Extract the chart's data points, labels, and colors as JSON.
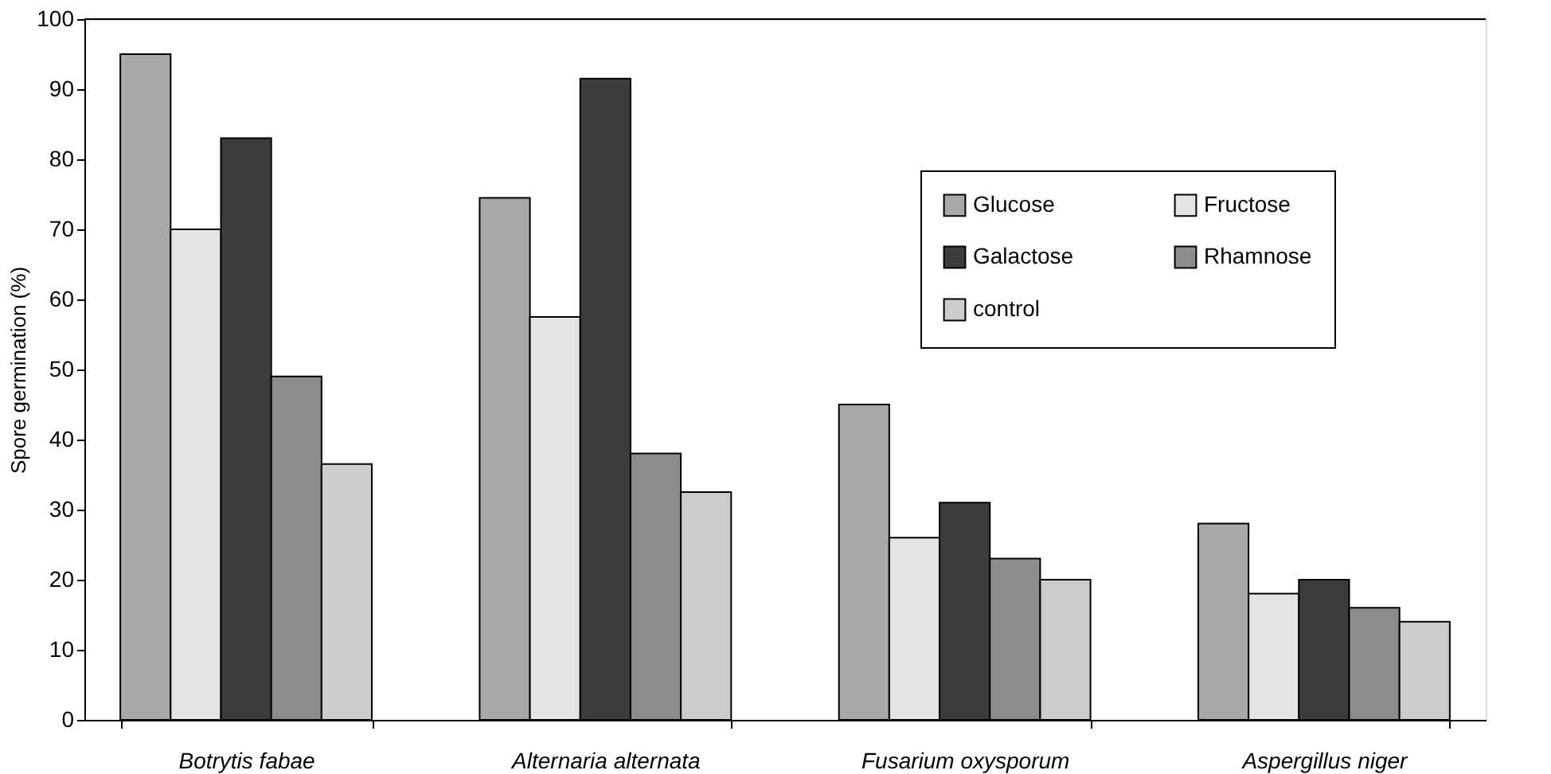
{
  "chart_data": {
    "type": "bar",
    "ylabel": "Spore germination (%)",
    "categories": [
      "Botrytis fabae",
      "Alternaria alternata",
      "Fusarium oxysporum",
      "Aspergillus niger"
    ],
    "series": [
      {
        "name": "Glucose",
        "color": "#a8a8a8",
        "values": [
          95,
          74.5,
          45,
          28
        ]
      },
      {
        "name": "Fructose",
        "color": "#e4e4e4",
        "values": [
          70,
          57.5,
          26,
          18
        ]
      },
      {
        "name": "Galactose",
        "color": "#3c3c3c",
        "values": [
          83,
          91.5,
          31,
          20
        ]
      },
      {
        "name": "Rhamnose",
        "color": "#8c8c8c",
        "values": [
          49,
          38,
          23,
          16
        ]
      },
      {
        "name": "control",
        "color": "#cccccc",
        "values": [
          36.5,
          32.5,
          20,
          14
        ]
      }
    ],
    "ylim": [
      0,
      100
    ],
    "yticks": [
      0,
      10,
      20,
      30,
      40,
      50,
      60,
      70,
      80,
      90,
      100
    ],
    "grid": false,
    "legend": "top right"
  }
}
